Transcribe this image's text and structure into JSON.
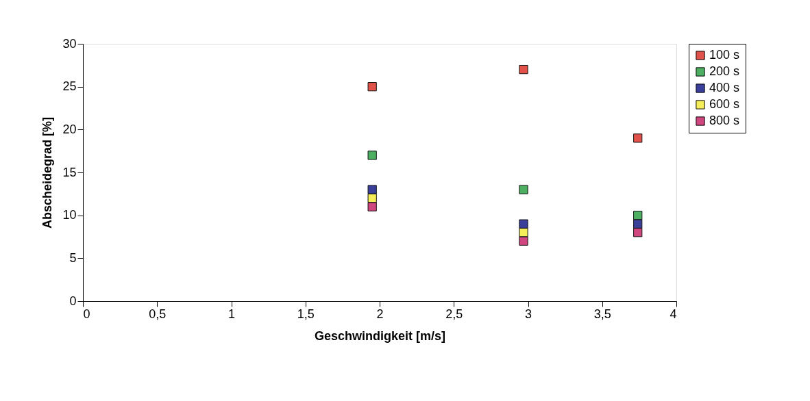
{
  "chart_data": {
    "type": "scatter",
    "xlabel": "Geschwindigkeit [m/s]",
    "ylabel": "Abscheidegrad [%]",
    "x": [
      1.95,
      2.97,
      3.74
    ],
    "series": [
      {
        "name": "100 s",
        "color": "#e0524a",
        "values": [
          25,
          27,
          19
        ]
      },
      {
        "name": "200 s",
        "color": "#4caf62",
        "values": [
          17,
          13,
          10
        ]
      },
      {
        "name": "400 s",
        "color": "#3a3f9a",
        "values": [
          13,
          9,
          9
        ]
      },
      {
        "name": "600 s",
        "color": "#f5ee5a",
        "values": [
          12,
          8,
          null
        ]
      },
      {
        "name": "800 s",
        "color": "#d0467e",
        "values": [
          11,
          7,
          8
        ]
      }
    ],
    "xlim": [
      0,
      4
    ],
    "ylim": [
      0,
      30
    ],
    "xticks": [
      0,
      {
        "value": 0.5,
        "label": "0,5"
      },
      1,
      {
        "value": 1.5,
        "label": "1,5"
      },
      2,
      {
        "value": 2.5,
        "label": "2,5"
      },
      3,
      {
        "value": 3.5,
        "label": "3,5"
      },
      4
    ],
    "yticks": [
      0,
      5,
      10,
      15,
      20,
      25,
      30
    ],
    "marker": "square",
    "grid": false,
    "legend": "right"
  }
}
